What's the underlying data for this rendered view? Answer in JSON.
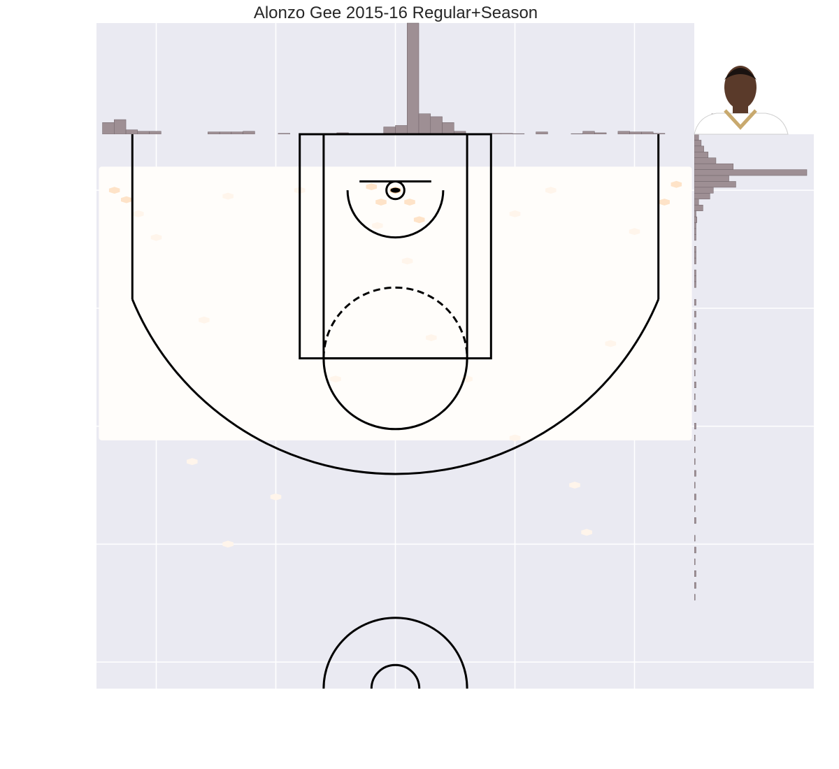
{
  "title": "Alonzo Gee 2015-16 Regular+Season",
  "colors": {
    "panel_bg": "#eaeaf2",
    "grid": "#ffffff",
    "hist_fill": "#9e8f94",
    "hist_edge": "#6f6368",
    "court_line": "#000000",
    "hex_low": "#fff5eb",
    "hex_high": "#fdd0a2"
  },
  "player_photo": {
    "icon": "player-headshot",
    "jersey_color": "#ffffff",
    "trim_color": "#c8a96e",
    "skin_color": "#5a3a2a"
  },
  "chart_data": {
    "type": "hexbin-joint",
    "xlim": [
      -250,
      250
    ],
    "ylim": [
      422.5,
      -47.5
    ],
    "grid": true,
    "shots_hexbin": [
      {
        "x": -235,
        "y": 0,
        "count": 3
      },
      {
        "x": -225,
        "y": 8,
        "count": 2
      },
      {
        "x": -215,
        "y": 20,
        "count": 1
      },
      {
        "x": -200,
        "y": 40,
        "count": 1
      },
      {
        "x": -140,
        "y": 5,
        "count": 1
      },
      {
        "x": -80,
        "y": 0,
        "count": 1
      },
      {
        "x": -20,
        "y": -3,
        "count": 2
      },
      {
        "x": 0,
        "y": 0,
        "count": 6
      },
      {
        "x": 12,
        "y": 10,
        "count": 3
      },
      {
        "x": -12,
        "y": 10,
        "count": 2
      },
      {
        "x": 20,
        "y": 25,
        "count": 2
      },
      {
        "x": -15,
        "y": 30,
        "count": 1
      },
      {
        "x": 10,
        "y": 60,
        "count": 1
      },
      {
        "x": 30,
        "y": 125,
        "count": 1
      },
      {
        "x": 60,
        "y": 160,
        "count": 1
      },
      {
        "x": 100,
        "y": 20,
        "count": 1
      },
      {
        "x": 130,
        "y": 0,
        "count": 1
      },
      {
        "x": 200,
        "y": 35,
        "count": 1
      },
      {
        "x": 225,
        "y": 10,
        "count": 2
      },
      {
        "x": 235,
        "y": -5,
        "count": 3
      },
      {
        "x": -160,
        "y": 110,
        "count": 1
      },
      {
        "x": 180,
        "y": 130,
        "count": 1
      },
      {
        "x": -50,
        "y": 160,
        "count": 1
      },
      {
        "x": 100,
        "y": 210,
        "count": 1
      },
      {
        "x": -170,
        "y": 230,
        "count": 1
      },
      {
        "x": 150,
        "y": 250,
        "count": 1
      },
      {
        "x": -140,
        "y": 300,
        "count": 1
      },
      {
        "x": 160,
        "y": 290,
        "count": 1
      },
      {
        "x": -100,
        "y": 260,
        "count": 1
      }
    ],
    "x_marginal": {
      "bin_edges_start": -245,
      "bin_width": 9.8,
      "counts": [
        4,
        5,
        1.5,
        1,
        1,
        0,
        0,
        0,
        0,
        0.8,
        0.8,
        0.8,
        1,
        0,
        0,
        0.3,
        0,
        0,
        0,
        0,
        0.5,
        0,
        0.3,
        0.3,
        2.5,
        3,
        38,
        7,
        6,
        4,
        1,
        0.3,
        0.3,
        0.3,
        0.3,
        0.2,
        0,
        0.8,
        0,
        0,
        0.2,
        1,
        0.5,
        0,
        1,
        0.8,
        0.8,
        0.3,
        0,
        0,
        0,
        1.5,
        7,
        2,
        0
      ]
    },
    "y_marginal": {
      "bin_edges_start": -47.5,
      "bin_width": 5,
      "counts": [
        0.5,
        0.8,
        1.1,
        1.6,
        2.5,
        4.5,
        13,
        4,
        4.8,
        2.2,
        1.8,
        0.5,
        1,
        0.2,
        0.3,
        0.2,
        0.2,
        0.2,
        0,
        0.2,
        0.2,
        0.2,
        0,
        0.2,
        0.2,
        0.2,
        0,
        0,
        0.2,
        0,
        0.2,
        0,
        0.2,
        0,
        0.1,
        0,
        0.2,
        0,
        0.2,
        0,
        0.1,
        0,
        0.2,
        0,
        0.1,
        0,
        0.2,
        0,
        0,
        0.2,
        0,
        0.1,
        0,
        0.1,
        0,
        0.1,
        0,
        0.2,
        0,
        0.1,
        0,
        0.2,
        0,
        0.1,
        0,
        0.2,
        0,
        0,
        0.1,
        0,
        0.2,
        0,
        0.1,
        0,
        0.2,
        0,
        0.2,
        0,
        0.1
      ]
    }
  }
}
